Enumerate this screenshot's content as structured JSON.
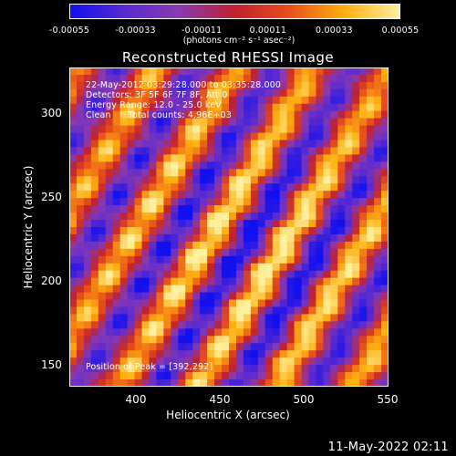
{
  "colorbar": {
    "ticks": [
      "-0.00055",
      "-0.00033",
      "-0.00011",
      "0.00011",
      "0.00033",
      "0.00055"
    ],
    "unit": "(photons cm⁻² s⁻¹ asec⁻²)",
    "colors": [
      "#1010f0",
      "#5a2ad0",
      "#8a3ab0",
      "#c02030",
      "#e8501a",
      "#ffb010",
      "#fff0a0"
    ]
  },
  "chart_data": {
    "type": "heatmap",
    "title": "Reconstructed RHESSI Image",
    "xlabel": "Heliocentric X (arcsec)",
    "ylabel": "Heliocentric Y (arcsec)",
    "xlim": [
      360,
      550
    ],
    "ylim": [
      135,
      325
    ],
    "xticks": [
      "400",
      "450",
      "500",
      "550"
    ],
    "yticks": [
      "150",
      "200",
      "250",
      "300"
    ],
    "clim": [
      -0.00055,
      0.00055
    ],
    "pattern": "diagonal fringe stripes (back-projection pattern)",
    "peak": [
      392,
      292
    ],
    "annotations": {
      "time_range": "22-May-2012 03:29:28.000 to 03:35:28.000",
      "detectors": "Detectors: 3F 5F 6F 7F 8F, Att 0",
      "energy": "Energy Range: 12.0 - 25.0 keV",
      "clean": "Clean      Total counts: 4.96E+03",
      "peak_label": "Position of Peak = [392,292]"
    }
  },
  "footer": {
    "timestamp": "11-May-2022 02:11"
  }
}
